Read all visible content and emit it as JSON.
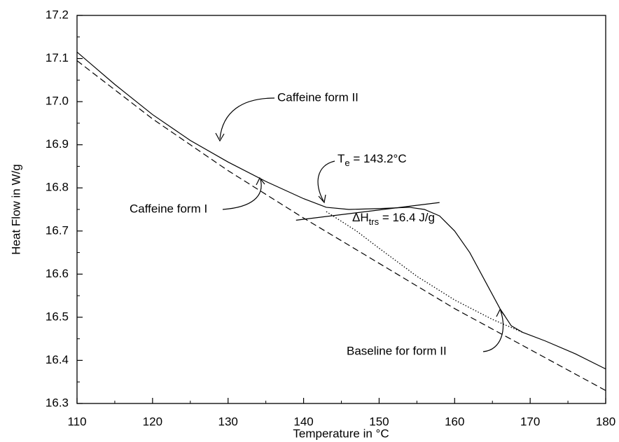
{
  "chart_data": {
    "type": "line",
    "xlabel": "Temperature in °C",
    "ylabel": "Heat Flow in W/g",
    "xlim": [
      110,
      180
    ],
    "xticks": [
      110,
      120,
      130,
      140,
      150,
      160,
      170,
      180
    ],
    "ylim": [
      16.3,
      17.2
    ],
    "yticks": [
      {
        "value": 16.3,
        "label": "16.3"
      },
      {
        "value": 16.4,
        "label": "16.4"
      },
      {
        "value": 16.5,
        "label": "16.5"
      },
      {
        "value": 16.6,
        "label": "16.6"
      },
      {
        "value": 16.7,
        "label": "16.7"
      },
      {
        "value": 16.8,
        "label": "16.8"
      },
      {
        "value": 16.9,
        "label": "16.9"
      },
      {
        "value": 17.0,
        "label": "17.0"
      },
      {
        "value": 17.1,
        "label": "17.1"
      },
      {
        "value": 17.2,
        "label": "17.2"
      }
    ],
    "series": [
      {
        "color": "#000000",
        "style": "solid",
        "x": [
          110,
          115,
          120,
          125,
          130,
          135,
          140,
          143,
          146,
          150,
          154,
          156,
          158,
          160,
          162,
          164,
          166,
          167.5,
          169,
          172,
          176,
          180
        ],
        "values": [
          17.115,
          17.04,
          16.97,
          16.91,
          16.86,
          16.815,
          16.775,
          16.755,
          16.75,
          16.752,
          16.755,
          16.75,
          16.735,
          16.7,
          16.65,
          16.585,
          16.52,
          16.48,
          16.465,
          16.445,
          16.415,
          16.38
        ]
      },
      {
        "color": "#000000",
        "style": "dashed",
        "x": [
          110,
          120,
          130,
          140,
          150,
          160,
          170,
          180
        ],
        "values": [
          17.095,
          16.96,
          16.84,
          16.73,
          16.625,
          16.52,
          16.425,
          16.33
        ]
      },
      {
        "color": "#000000",
        "style": "dotted",
        "x": [
          143,
          147,
          150,
          155,
          160,
          165,
          169
        ],
        "values": [
          16.745,
          16.7,
          16.66,
          16.595,
          16.54,
          16.495,
          16.465
        ]
      },
      {
        "color": "#000000",
        "style": "solid",
        "x": [
          139,
          158
        ],
        "values": [
          16.725,
          16.766
        ]
      }
    ],
    "annotations": {
      "form2": "Caffeine form II",
      "form1": "Caffeine form I",
      "baseline": "Baseline for form II",
      "onset": [
        "T",
        "e",
        " = 143.2°C"
      ],
      "enthalpy": [
        "ΔH",
        "trs",
        " = 16.4 J/g"
      ]
    }
  }
}
